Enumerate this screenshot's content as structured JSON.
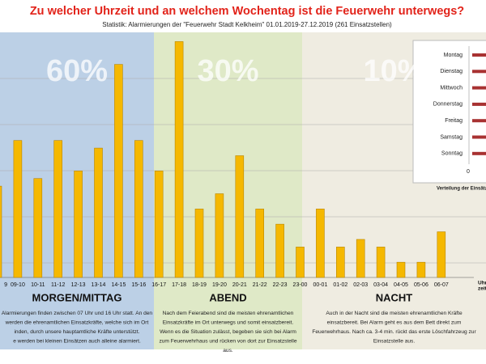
{
  "chart_data": [
    {
      "type": "bar",
      "title": "Zu welcher Uhrzeit und an welchem Wochentag ist die Feuerwehr unterwegs?",
      "subtitle": "Statistik: Alarmierungen der \"Feuerwehr Stadt Kelkheim\" 01.01.2019-27.12.2019 (261 Einsatzstellen)",
      "categories": [
        "9",
        "09-10",
        "10-11",
        "11-12",
        "12-13",
        "13-14",
        "14-15",
        "15-16",
        "16-17",
        "17-18",
        "18-19",
        "19-20",
        "20-21",
        "21-22",
        "22-23",
        "23-00",
        "00-01",
        "01-02",
        "02-03",
        "03-04",
        "04-05",
        "05-06",
        "06-07"
      ],
      "values": [
        12,
        18,
        13,
        18,
        14,
        17,
        28,
        18,
        14,
        31,
        9,
        11,
        16,
        9,
        7,
        4,
        9,
        4,
        5,
        4,
        2,
        2,
        6
      ],
      "color": "#f5b800",
      "ylim": [
        0,
        32
      ],
      "x_label": [
        "Uhr",
        "zeit"
      ],
      "sections": [
        {
          "name": "MORGEN/MITTAG",
          "share": "60%",
          "text": [
            "Alarmierungen finden zwischen 07 Uhr und 16 Uhr statt. An den",
            "werden die ehrenamtlichen Einsatzkräfte, welche sich im Ort",
            "inden, durch unsere hauptamtliche Kräfte unterstützt.",
            "e werden bei kleinen Einsätzen auch alleine alarmiert."
          ]
        },
        {
          "name": "ABEND",
          "share": "30%",
          "text": [
            "Nach dem Feierabend sind die meisten ehrenamtlichen",
            "Einsatzkräfte im Ort unterwegs und somit einsatzbereit.",
            "Wenn es die Situation zulässt, begeben sie sich bei Alarm",
            "zum Feuerwehrhaus und rücken von dort zur Einsatzstelle",
            "aus."
          ]
        },
        {
          "name": "NACHT",
          "share": "10%",
          "text": [
            "Auch in der Nacht sind die meisten ehrenamtlichen Kräfte",
            "einsatzbereit. Bei Alarm geht es aus dem Bett direkt zum",
            "Feuerwehrhaus. Nach ca. 3-4 min. rückt das erste Löschfahrzeug zur",
            "Einsatzstelle aus."
          ]
        }
      ]
    },
    {
      "type": "hbar",
      "categories": [
        "Montag",
        "Dienstag",
        "Mittwoch",
        "Donnerstag",
        "Freitag",
        "Samstag",
        "Sonntag"
      ],
      "xticks": [
        0
      ],
      "x_label": "Verteilung der Einsätz"
    }
  ]
}
